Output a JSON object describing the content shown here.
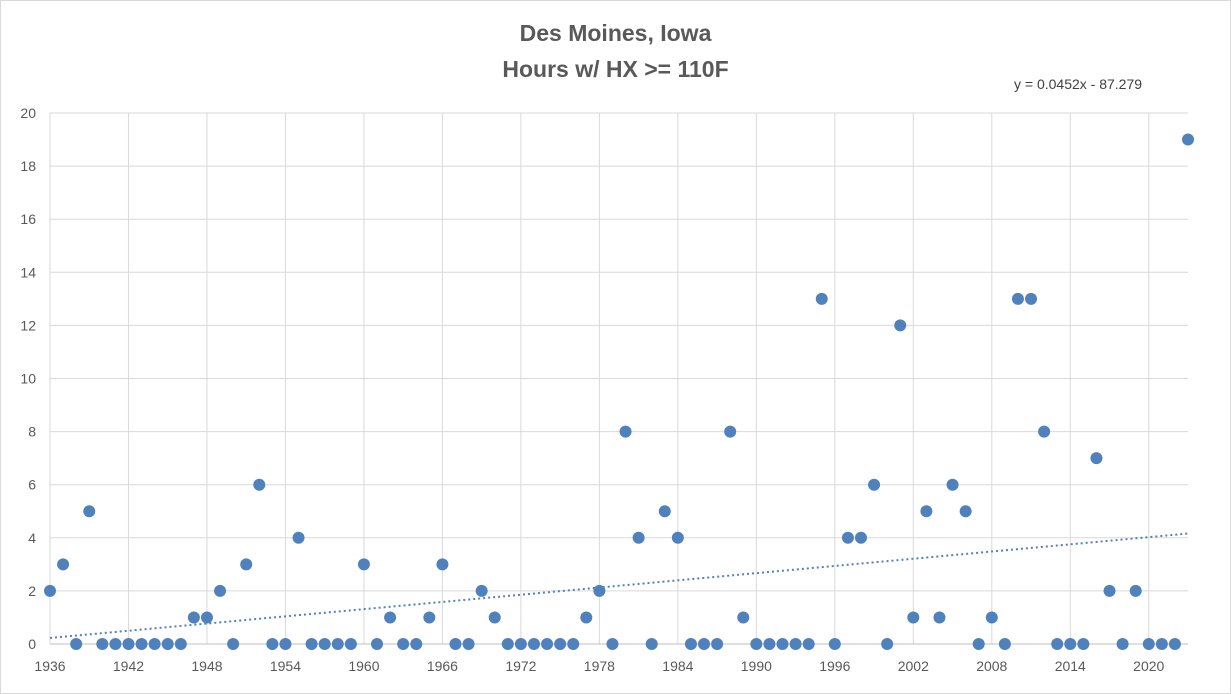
{
  "chart_data": {
    "type": "scatter",
    "title": [
      "Des Moines, Iowa",
      "Hours w/ HX >= 110F"
    ],
    "xlabel": "",
    "ylabel": "",
    "xlim": [
      1936,
      2023
    ],
    "ylim": [
      0,
      20
    ],
    "x_ticks": [
      1936,
      1942,
      1948,
      1954,
      1960,
      1966,
      1972,
      1978,
      1984,
      1990,
      1996,
      2002,
      2008,
      2014,
      2020
    ],
    "y_ticks": [
      0,
      2,
      4,
      6,
      8,
      10,
      12,
      14,
      16,
      18,
      20
    ],
    "grid": true,
    "legend": "none",
    "marker_color": "#4f81bd",
    "trendline": {
      "type": "linear",
      "style": "dotted",
      "color": "#4f81bd",
      "slope": 0.0452,
      "intercept": -87.279,
      "equation_label": "y = 0.0452x - 87.279"
    },
    "x": [
      1936,
      1937,
      1938,
      1939,
      1940,
      1941,
      1942,
      1943,
      1944,
      1945,
      1946,
      1947,
      1948,
      1949,
      1950,
      1951,
      1952,
      1953,
      1954,
      1955,
      1956,
      1957,
      1958,
      1959,
      1960,
      1961,
      1962,
      1963,
      1964,
      1965,
      1966,
      1967,
      1968,
      1969,
      1970,
      1971,
      1972,
      1973,
      1974,
      1975,
      1976,
      1977,
      1978,
      1979,
      1980,
      1981,
      1982,
      1983,
      1984,
      1985,
      1986,
      1987,
      1988,
      1989,
      1990,
      1991,
      1992,
      1993,
      1994,
      1995,
      1996,
      1997,
      1998,
      1999,
      2000,
      2001,
      2002,
      2003,
      2004,
      2005,
      2006,
      2007,
      2008,
      2009,
      2010,
      2011,
      2012,
      2013,
      2014,
      2015,
      2016,
      2017,
      2018,
      2019,
      2020,
      2021,
      2022,
      2023
    ],
    "y": [
      2,
      3,
      0,
      5,
      0,
      0,
      0,
      0,
      0,
      0,
      0,
      1,
      1,
      2,
      0,
      3,
      6,
      0,
      0,
      4,
      0,
      0,
      0,
      0,
      3,
      0,
      1,
      0,
      0,
      1,
      3,
      0,
      0,
      2,
      1,
      0,
      0,
      0,
      0,
      0,
      0,
      1,
      2,
      0,
      8,
      4,
      0,
      5,
      4,
      0,
      0,
      0,
      8,
      1,
      0,
      0,
      0,
      0,
      0,
      13,
      0,
      4,
      4,
      6,
      0,
      12,
      1,
      5,
      1,
      6,
      5,
      0,
      1,
      0,
      13,
      13,
      8,
      0,
      0,
      0,
      7,
      2,
      0,
      2,
      0,
      0,
      0,
      19
    ]
  }
}
